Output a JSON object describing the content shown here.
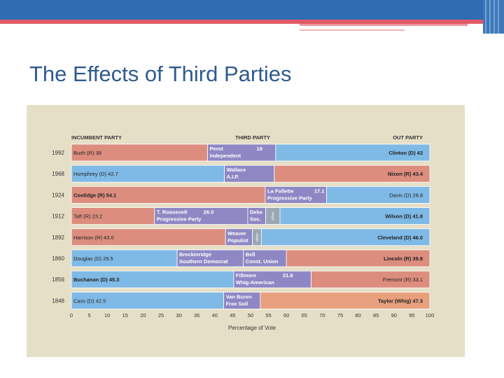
{
  "slide": {
    "title": "The Effects of Third Parties"
  },
  "colors": {
    "top_band": "#2f6cb2",
    "accent_stripe": "#e05a66",
    "panel_background": "#e6dfc7",
    "republican": "#dc8d7e",
    "democrat": "#7fb9e6",
    "third_party": "#8e87c4",
    "other": "#9aa7b5",
    "whig": "#e8a07e"
  },
  "chart_data": {
    "type": "bar",
    "orientation": "horizontal-stacked",
    "title": "",
    "column_headers": {
      "left": "INCUMBENT PARTY",
      "middle": "THIRD PARTY",
      "right": "OUT PARTY"
    },
    "xlabel": "Percentage of Vote",
    "xlim": [
      0,
      100
    ],
    "x_ticks": [
      0,
      5,
      10,
      15,
      20,
      25,
      30,
      35,
      40,
      45,
      50,
      55,
      60,
      65,
      70,
      75,
      80,
      85,
      90,
      95,
      100
    ],
    "grid": false,
    "legend": "none",
    "rows": [
      {
        "year": "1992",
        "incumbent": {
          "label": "Bush (R) 38",
          "value": 38,
          "party": "republican",
          "bold": false
        },
        "third": [
          {
            "name": "Perot",
            "value_text": "19",
            "sub": "Independent",
            "value": 19,
            "party": "third_party"
          }
        ],
        "out": {
          "label": "Clinton (D) 43",
          "value": 43,
          "party": "democrat",
          "bold": true
        }
      },
      {
        "year": "1968",
        "incumbent": {
          "label": "Humphrey (D) 42.7",
          "value": 42.7,
          "party": "democrat",
          "bold": false
        },
        "third": [
          {
            "name": "Wallace",
            "value_text": "13.9",
            "sub": "A.I.P.",
            "value": 13.9,
            "party": "third_party"
          }
        ],
        "out": {
          "label": "Nixon (R) 43.4",
          "value": 43.4,
          "party": "republican",
          "bold": true
        }
      },
      {
        "year": "1924",
        "incumbent": {
          "label": "Coolidge (R) 54.1",
          "value": 54.1,
          "party": "republican",
          "bold": true
        },
        "third": [
          {
            "name": "La Follette",
            "value_text": "17.1",
            "sub": "Progressive Party",
            "value": 17.1,
            "party": "third_party"
          }
        ],
        "out": {
          "label": "Davis (D) 28.8",
          "value": 28.8,
          "party": "democrat",
          "bold": false
        }
      },
      {
        "year": "1912",
        "incumbent": {
          "label": "Taft (R) 23.2",
          "value": 23.2,
          "party": "republican",
          "bold": false
        },
        "third": [
          {
            "name": "T. Roosevelt",
            "value_text": "26.0",
            "sub": "Progressive Party",
            "value": 26.0,
            "party": "third_party"
          },
          {
            "name": "Debs",
            "value_text": "",
            "sub": "Soc.",
            "value": 5.0,
            "party": "third_party"
          },
          {
            "name": "",
            "value_text": "",
            "sub": "other",
            "value": 4.0,
            "party": "other",
            "vertical": true
          }
        ],
        "out": {
          "label": "Wilson (D) 41.8",
          "value": 41.8,
          "party": "democrat",
          "bold": true
        }
      },
      {
        "year": "1892",
        "incumbent": {
          "label": "Harrison (R) 43.0",
          "value": 43.0,
          "party": "republican",
          "bold": false
        },
        "third": [
          {
            "name": "Weaver",
            "value_text": "",
            "sub": "Populist",
            "value": 7.5,
            "party": "third_party"
          },
          {
            "name": "",
            "value_text": "",
            "sub": "other",
            "value": 2.5,
            "party": "other",
            "vertical": true
          }
        ],
        "out": {
          "label": "Cleveland (D) 46.0",
          "value": 46.0,
          "party": "democrat",
          "bold": true
        }
      },
      {
        "year": "1860",
        "incumbent": {
          "label": "Douglas (D) 29.5",
          "value": 29.5,
          "party": "democrat",
          "bold": false
        },
        "third": [
          {
            "name": "Breckinridge",
            "value_text": "",
            "sub": "Southern Democrat",
            "value": 18.5,
            "party": "third_party"
          },
          {
            "name": "Bell",
            "value_text": "",
            "sub": "Const. Union",
            "value": 12.0,
            "party": "third_party"
          }
        ],
        "out": {
          "label": "Lincoln (R) 39.8",
          "value": 39.8,
          "party": "republican",
          "bold": true
        }
      },
      {
        "year": "1856",
        "incumbent": {
          "label": "Buchanan (D) 45.3",
          "value": 45.3,
          "party": "democrat",
          "bold": true
        },
        "third": [
          {
            "name": "Fillmore",
            "value_text": "21.6",
            "sub": "Whig-American",
            "value": 21.6,
            "party": "third_party"
          }
        ],
        "out": {
          "label": "Fremont (R) 33.1",
          "value": 33.1,
          "party": "republican",
          "bold": false
        }
      },
      {
        "year": "1848",
        "incumbent": {
          "label": "Cass (D) 42.5",
          "value": 42.5,
          "party": "democrat",
          "bold": false
        },
        "third": [
          {
            "name": "Van Buren",
            "value_text": "",
            "sub": "Free Soil",
            "value": 10.2,
            "party": "third_party"
          }
        ],
        "out": {
          "label": "Taylor (Whig) 47.3",
          "value": 47.3,
          "party": "whig",
          "bold": true
        }
      }
    ]
  }
}
